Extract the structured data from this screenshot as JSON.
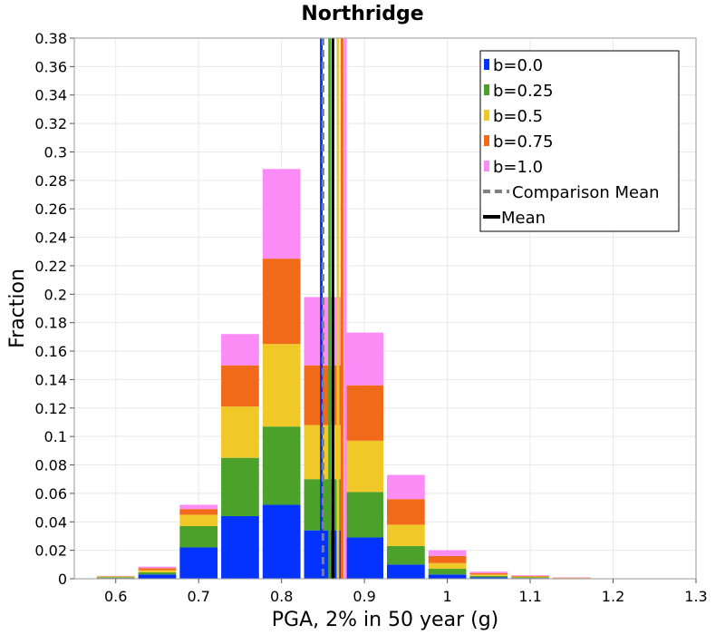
{
  "chart_data": {
    "type": "bar",
    "stacked": true,
    "title": "Northridge",
    "xlabel": "PGA, 2% in 50 year (g)",
    "ylabel": "Fraction",
    "xlim": [
      0.55,
      1.3
    ],
    "ylim": [
      0,
      0.38
    ],
    "xticks": [
      "0.6",
      "0.7",
      "0.8",
      "0.9",
      "1",
      "1.1",
      "1.2",
      "1.3"
    ],
    "yticks": [
      "0",
      "0.02",
      "0.04",
      "0.06",
      "0.08",
      "0.1",
      "0.12",
      "0.14",
      "0.16",
      "0.18",
      "0.2",
      "0.22",
      "0.24",
      "0.26",
      "0.28",
      "0.3",
      "0.32",
      "0.34",
      "0.36",
      "0.38"
    ],
    "bin_width": 0.05,
    "bin_centers": [
      0.6,
      0.65,
      0.7,
      0.75,
      0.8,
      0.85,
      0.9,
      0.95,
      1.0,
      1.05,
      1.1,
      1.15,
      1.2
    ],
    "series": [
      {
        "name": "b=0.0",
        "color": "#0433ff",
        "values": [
          0.0005,
          0.003,
          0.022,
          0.044,
          0.052,
          0.034,
          0.029,
          0.01,
          0.003,
          0.001,
          0.0005,
          0,
          0
        ]
      },
      {
        "name": "b=0.25",
        "color": "#4ca12a",
        "values": [
          0.0005,
          0.0015,
          0.015,
          0.041,
          0.055,
          0.036,
          0.032,
          0.013,
          0.004,
          0.001,
          0.0005,
          0.0002,
          0
        ]
      },
      {
        "name": "b=0.5",
        "color": "#f0c928",
        "values": [
          0.0005,
          0.0015,
          0.008,
          0.036,
          0.058,
          0.038,
          0.036,
          0.015,
          0.004,
          0.001,
          0.0005,
          0.0003,
          0
        ]
      },
      {
        "name": "b=0.75",
        "color": "#f06a1a",
        "values": [
          0.0003,
          0.0015,
          0.004,
          0.029,
          0.06,
          0.042,
          0.039,
          0.018,
          0.005,
          0.001,
          0.0005,
          0.0003,
          0
        ]
      },
      {
        "name": "b=1.0",
        "color": "#fb8cf6",
        "values": [
          0.0002,
          0.001,
          0.003,
          0.022,
          0.063,
          0.048,
          0.037,
          0.017,
          0.004,
          0.001,
          0.0005,
          0.0002,
          0.0002
        ]
      }
    ],
    "vertical_lines": [
      {
        "name": "b=0.0 mean",
        "x": 0.848,
        "color": "#0433ff",
        "style": "solid"
      },
      {
        "name": "b=0.25 mean",
        "x": 0.858,
        "color": "#4ca12a",
        "style": "solid"
      },
      {
        "name": "b=0.5 mean",
        "x": 0.868,
        "color": "#f0c928",
        "style": "solid"
      },
      {
        "name": "b=0.75 mean",
        "x": 0.873,
        "color": "#f06a1a",
        "style": "solid"
      },
      {
        "name": "b=1.0 mean",
        "x": 0.877,
        "color": "#fb8cf6",
        "style": "solid"
      },
      {
        "name": "Comparison Mean",
        "x": 0.85,
        "color": "#808080",
        "style": "dashed"
      },
      {
        "name": "Mean",
        "x": 0.862,
        "color": "#000000",
        "style": "solid"
      }
    ],
    "legend": {
      "position": "top-right",
      "items": [
        {
          "label": "b=0.0",
          "color": "#0433ff",
          "kind": "box"
        },
        {
          "label": "b=0.25",
          "color": "#4ca12a",
          "kind": "box"
        },
        {
          "label": "b=0.5",
          "color": "#f0c928",
          "kind": "box"
        },
        {
          "label": "b=0.75",
          "color": "#f06a1a",
          "kind": "box"
        },
        {
          "label": "b=1.0",
          "color": "#fb8cf6",
          "kind": "box"
        },
        {
          "label": "Comparison Mean",
          "color": "#808080",
          "kind": "dashed"
        },
        {
          "label": "Mean",
          "color": "#000000",
          "kind": "line"
        }
      ]
    },
    "grid": true
  }
}
